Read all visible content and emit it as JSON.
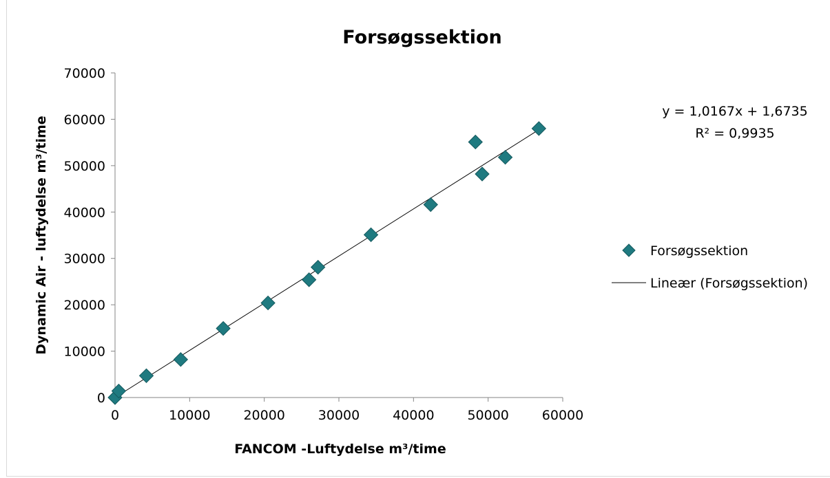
{
  "chart_data": {
    "type": "scatter",
    "title": "Forsøgssektion",
    "xlabel": "FANCOM -Luftydelse m³/time",
    "ylabel": "Dynamic Air - luftydelse m³/time",
    "xlim": [
      0,
      60000
    ],
    "ylim": [
      0,
      70000
    ],
    "x_ticks": [
      "0",
      "10000",
      "20000",
      "30000",
      "40000",
      "50000",
      "60000"
    ],
    "y_ticks": [
      "0",
      "10000",
      "20000",
      "30000",
      "40000",
      "50000",
      "60000",
      "70000"
    ],
    "grid": false,
    "legend_position": "right",
    "series": [
      {
        "name": "Forsøgssektion",
        "color": "#1f7a80",
        "marker": "diamond",
        "points": [
          {
            "x": 0,
            "y": 0
          },
          {
            "x": 500,
            "y": 1400
          },
          {
            "x": 4200,
            "y": 4700
          },
          {
            "x": 8800,
            "y": 8200
          },
          {
            "x": 14500,
            "y": 14900
          },
          {
            "x": 20500,
            "y": 20400
          },
          {
            "x": 26000,
            "y": 25400
          },
          {
            "x": 27200,
            "y": 28100
          },
          {
            "x": 34300,
            "y": 35100
          },
          {
            "x": 42300,
            "y": 41600
          },
          {
            "x": 48300,
            "y": 55100
          },
          {
            "x": 49200,
            "y": 48200
          },
          {
            "x": 52300,
            "y": 51800
          },
          {
            "x": 56800,
            "y": 58000
          }
        ]
      }
    ],
    "trendline": {
      "name": "Lineær (Forsøgssektion)",
      "type": "linear",
      "slope": 1.0167,
      "intercept": 1.6735,
      "x_range": [
        0,
        56800
      ],
      "color": "#000000",
      "equation_label": "y = 1,0167x + 1,6735",
      "r2_label": "R² = 0,9935"
    },
    "legend": [
      {
        "label": "Forsøgssektion",
        "symbol": "diamond"
      },
      {
        "label": "Lineær (Forsøgssektion)",
        "symbol": "line"
      }
    ]
  }
}
